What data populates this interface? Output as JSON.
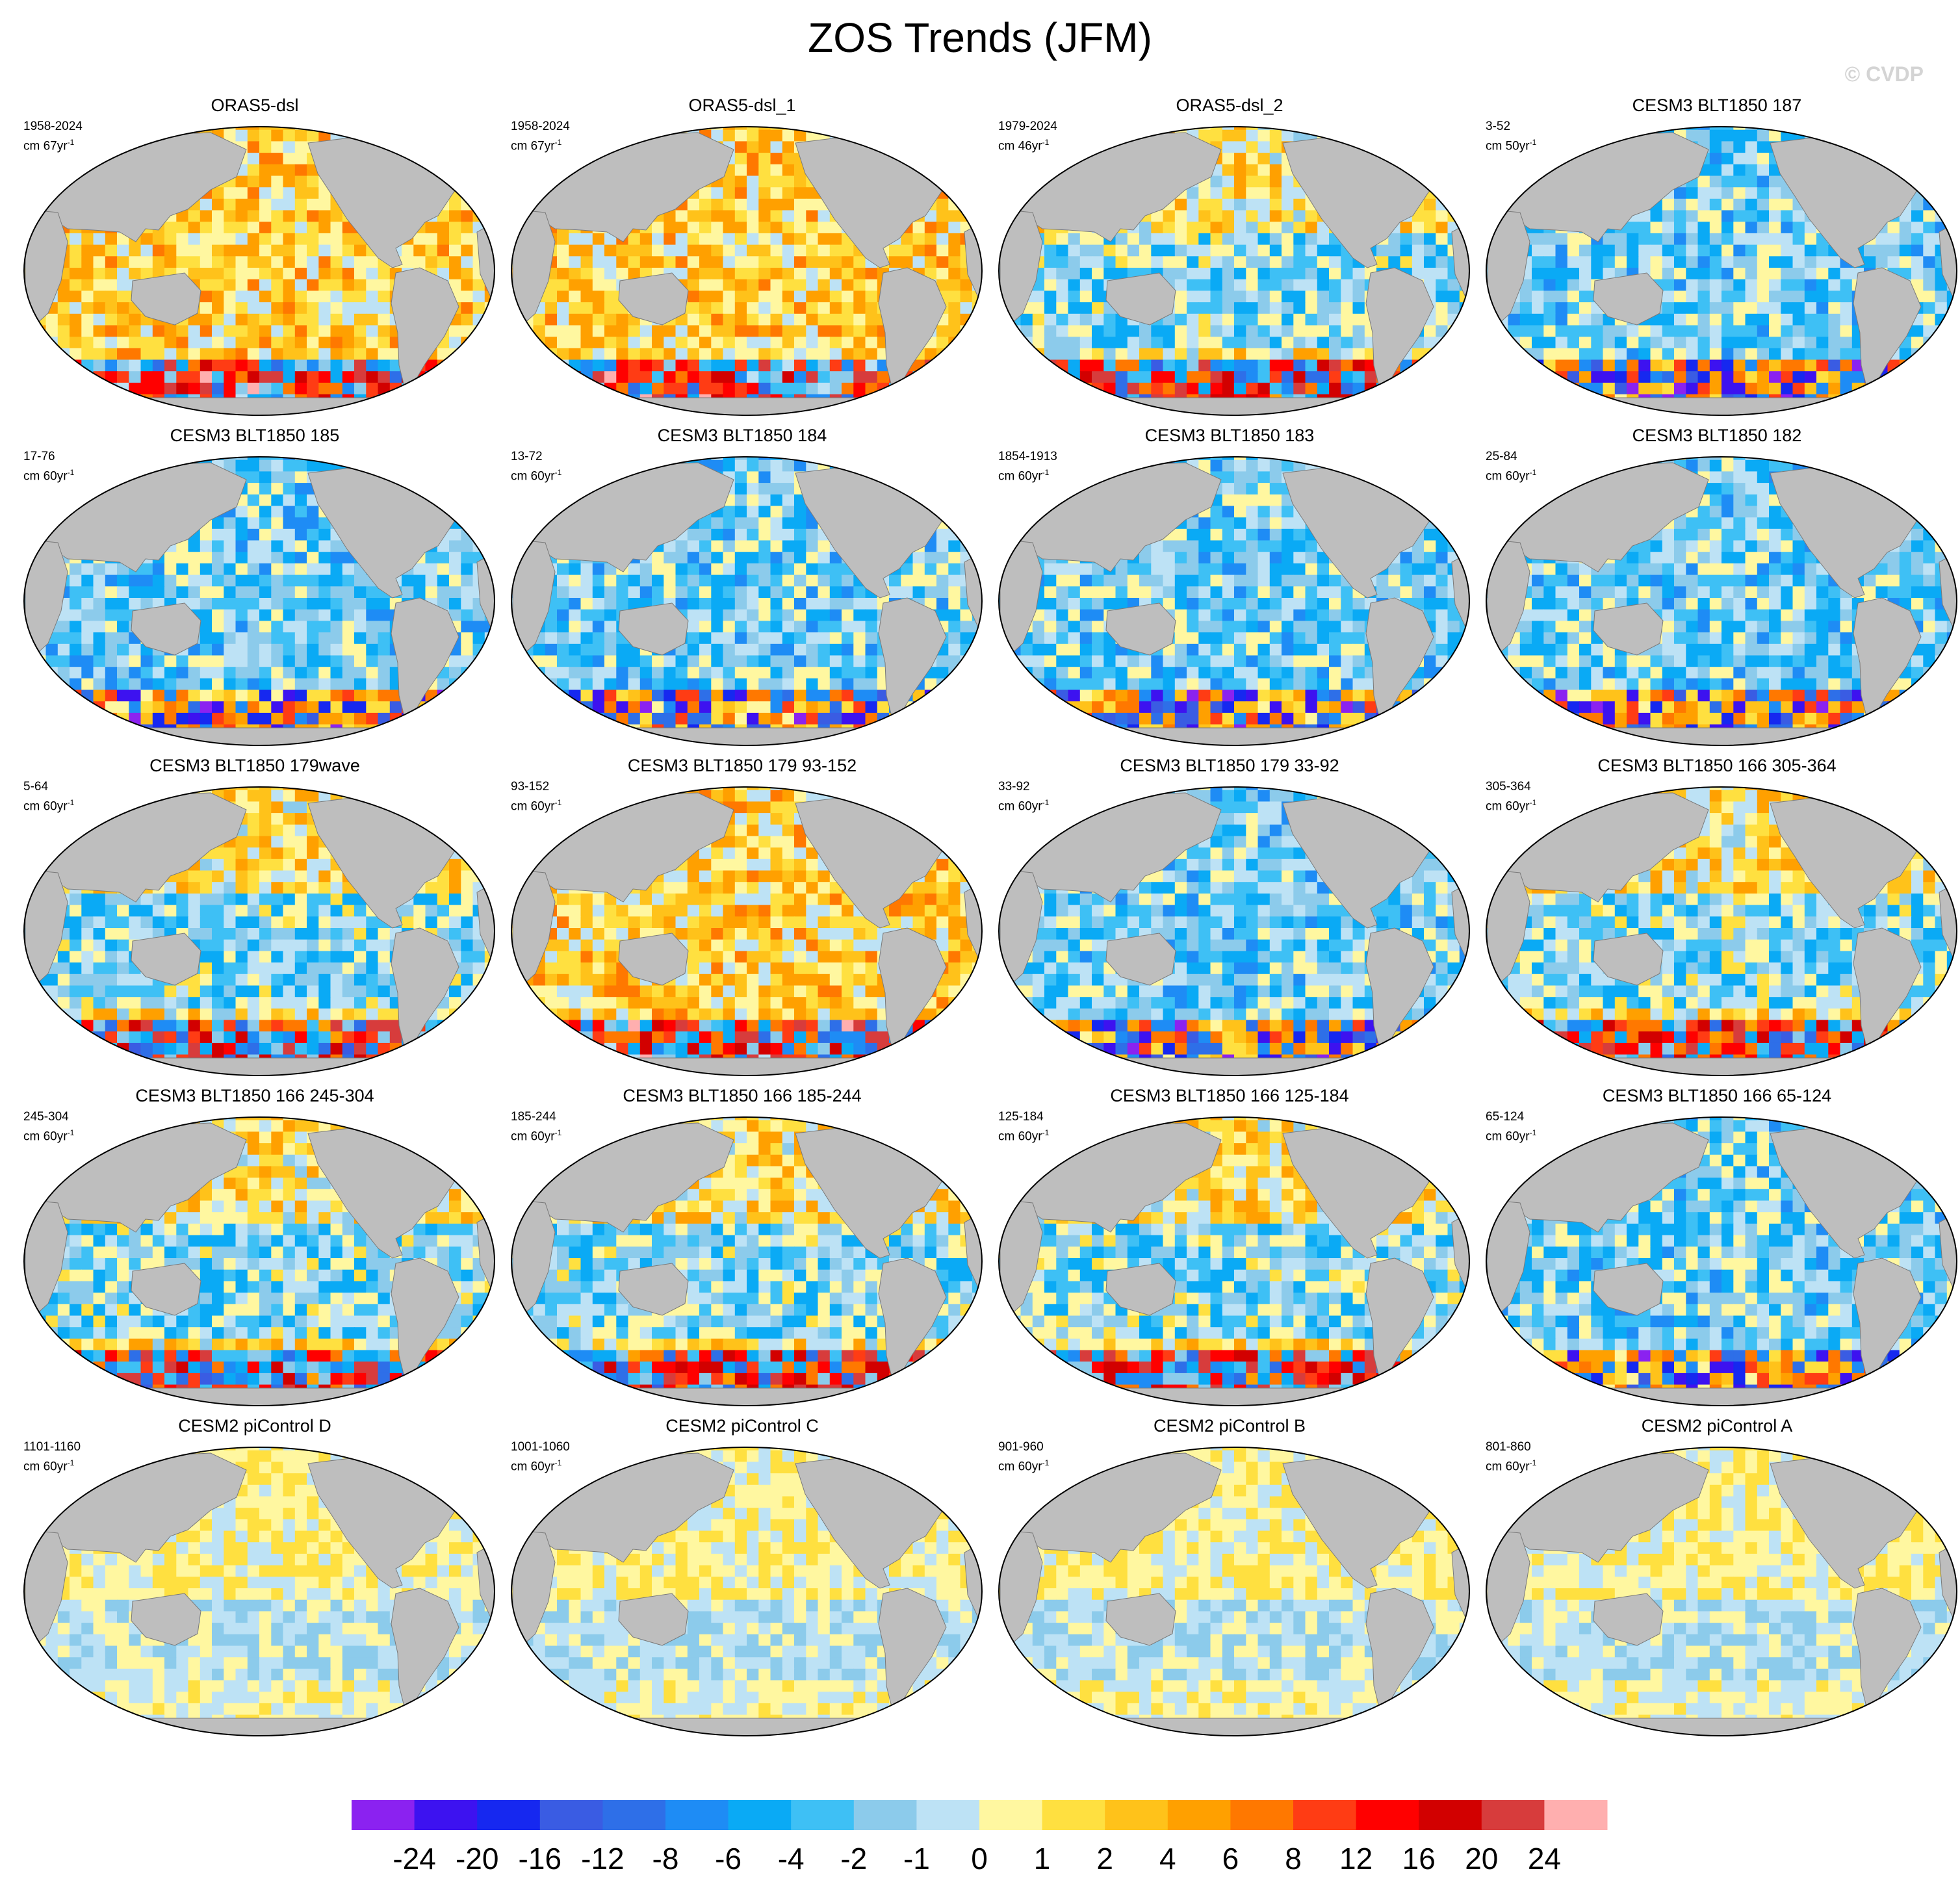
{
  "title": "ZOS Trends (JFM)",
  "watermark": "© CVDP",
  "panels": [
    {
      "title": "ORAS5-dsl",
      "period": "1958-2024",
      "unit": "cm 67yr",
      "unit_exp": "-1"
    },
    {
      "title": "ORAS5-dsl_1",
      "period": "1958-2024",
      "unit": "cm 67yr",
      "unit_exp": "-1"
    },
    {
      "title": "ORAS5-dsl_2",
      "period": "1979-2024",
      "unit": "cm 46yr",
      "unit_exp": "-1"
    },
    {
      "title": "CESM3 BLT1850 187",
      "period": "3-52",
      "unit": "cm 50yr",
      "unit_exp": "-1"
    },
    {
      "title": "CESM3 BLT1850 185",
      "period": "17-76",
      "unit": "cm 60yr",
      "unit_exp": "-1"
    },
    {
      "title": "CESM3 BLT1850 184",
      "period": "13-72",
      "unit": "cm 60yr",
      "unit_exp": "-1"
    },
    {
      "title": "CESM3 BLT1850 183",
      "period": "1854-1913",
      "unit": "cm 60yr",
      "unit_exp": "-1"
    },
    {
      "title": "CESM3 BLT1850 182",
      "period": "25-84",
      "unit": "cm 60yr",
      "unit_exp": "-1"
    },
    {
      "title": "CESM3 BLT1850 179wave",
      "period": "5-64",
      "unit": "cm 60yr",
      "unit_exp": "-1"
    },
    {
      "title": "CESM3 BLT1850 179 93-152",
      "period": "93-152",
      "unit": "cm 60yr",
      "unit_exp": "-1"
    },
    {
      "title": "CESM3 BLT1850 179 33-92",
      "period": "33-92",
      "unit": "cm 60yr",
      "unit_exp": "-1"
    },
    {
      "title": "CESM3 BLT1850 166 305-364",
      "period": "305-364",
      "unit": "cm 60yr",
      "unit_exp": "-1"
    },
    {
      "title": "CESM3 BLT1850 166 245-304",
      "period": "245-304",
      "unit": "cm 60yr",
      "unit_exp": "-1"
    },
    {
      "title": "CESM3 BLT1850 166 185-244",
      "period": "185-244",
      "unit": "cm 60yr",
      "unit_exp": "-1"
    },
    {
      "title": "CESM3 BLT1850 166 125-184",
      "period": "125-184",
      "unit": "cm 60yr",
      "unit_exp": "-1"
    },
    {
      "title": "CESM3 BLT1850 166 65-124",
      "period": "65-124",
      "unit": "cm 60yr",
      "unit_exp": "-1"
    },
    {
      "title": "CESM2 piControl D",
      "period": "1101-1160",
      "unit": "cm 60yr",
      "unit_exp": "-1"
    },
    {
      "title": "CESM2 piControl C",
      "period": "1001-1060",
      "unit": "cm 60yr",
      "unit_exp": "-1"
    },
    {
      "title": "CESM2 piControl B",
      "period": "901-960",
      "unit": "cm 60yr",
      "unit_exp": "-1"
    },
    {
      "title": "CESM2 piControl A",
      "period": "801-860",
      "unit": "cm 60yr",
      "unit_exp": "-1"
    }
  ],
  "chart_data": {
    "type": "heatmap",
    "projection": "Robinson global, Pacific-centred",
    "layout": {
      "rows": 5,
      "cols": 4
    },
    "land_color": "#bebebe",
    "ocean_pattern_by_panel": [
      "warm",
      "warm",
      "mixed",
      "cool",
      "cool",
      "cool",
      "cool",
      "cool",
      "mixed",
      "warm",
      "cool",
      "mixed",
      "mixed",
      "mixed",
      "mixed",
      "cool",
      "weak",
      "weak",
      "weak",
      "weak"
    ],
    "colorbar": {
      "labels": [
        "-24",
        "-20",
        "-16",
        "-12",
        "-8",
        "-6",
        "-4",
        "-2",
        "-1",
        "0",
        "1",
        "2",
        "4",
        "6",
        "8",
        "12",
        "16",
        "20",
        "24"
      ],
      "colors": [
        "#8b22f0",
        "#3d12f0",
        "#1628f0",
        "#3a5ce3",
        "#2e6fe8",
        "#1e8cf5",
        "#0aaaf5",
        "#3ec0f5",
        "#8ccbeb",
        "#bde2f5",
        "#fff7a0",
        "#ffe040",
        "#ffc21a",
        "#ffa000",
        "#ff7800",
        "#ff3c14",
        "#ff0000",
        "#d20000",
        "#d73c3c",
        "#ffafaf"
      ]
    }
  }
}
